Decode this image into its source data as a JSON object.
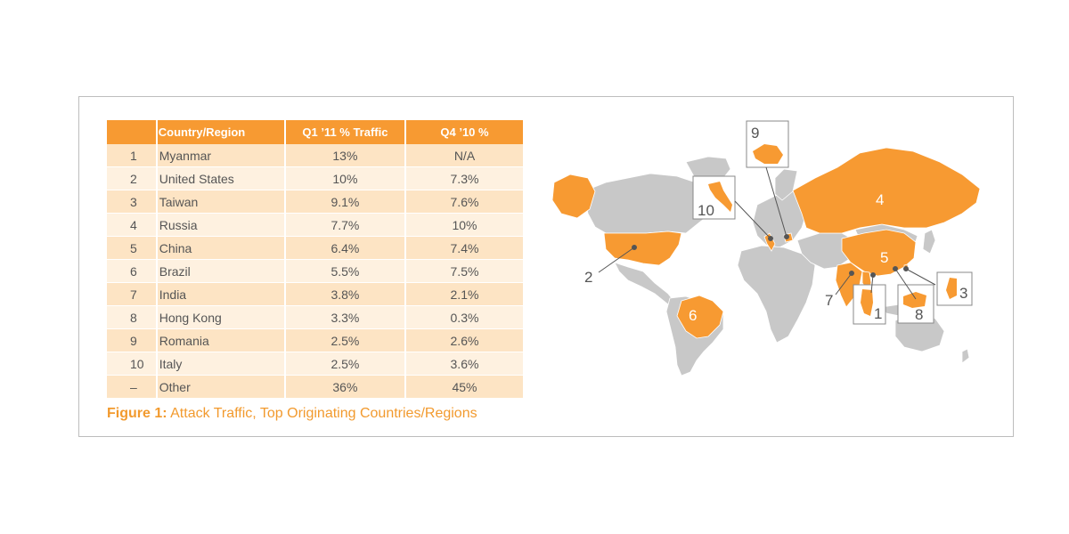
{
  "table": {
    "headers": [
      "",
      "Country/Region",
      "Q1 ’11 % Traffic",
      "Q4 ’10 %"
    ],
    "rows": [
      {
        "rank": "1",
        "name": "Myanmar",
        "q1": "13%",
        "q4": "N/A"
      },
      {
        "rank": "2",
        "name": "United States",
        "q1": "10%",
        "q4": "7.3%"
      },
      {
        "rank": "3",
        "name": "Taiwan",
        "q1": "9.1%",
        "q4": "7.6%"
      },
      {
        "rank": "4",
        "name": "Russia",
        "q1": "7.7%",
        "q4": "10%"
      },
      {
        "rank": "5",
        "name": "China",
        "q1": "6.4%",
        "q4": "7.4%"
      },
      {
        "rank": "6",
        "name": "Brazil",
        "q1": "5.5%",
        "q4": "7.5%"
      },
      {
        "rank": "7",
        "name": "India",
        "q1": "3.8%",
        "q4": "2.1%"
      },
      {
        "rank": "8",
        "name": "Hong Kong",
        "q1": "3.3%",
        "q4": "0.3%"
      },
      {
        "rank": "9",
        "name": "Romania",
        "q1": "2.5%",
        "q4": "2.6%"
      },
      {
        "rank": "10",
        "name": "Italy",
        "q1": "2.5%",
        "q4": "3.6%"
      },
      {
        "rank": "–",
        "name": "Other",
        "q1": "36%",
        "q4": "45%"
      }
    ]
  },
  "caption": {
    "label": "Figure 1:",
    "text": " Attack Traffic, Top Originating Countries/Regions"
  },
  "map": {
    "markers": {
      "us": "2",
      "taiwan": "3",
      "russia": "4",
      "china": "5",
      "brazil": "6",
      "india": "7",
      "hongkong": "8",
      "romania": "9",
      "italy": "10",
      "myanmar": "1"
    }
  },
  "colors": {
    "accent": "#f79a32",
    "land": "#c8c8c8",
    "row_dark": "#fde4c4",
    "row_light": "#fef1e0",
    "caption": "#f29a2e"
  }
}
